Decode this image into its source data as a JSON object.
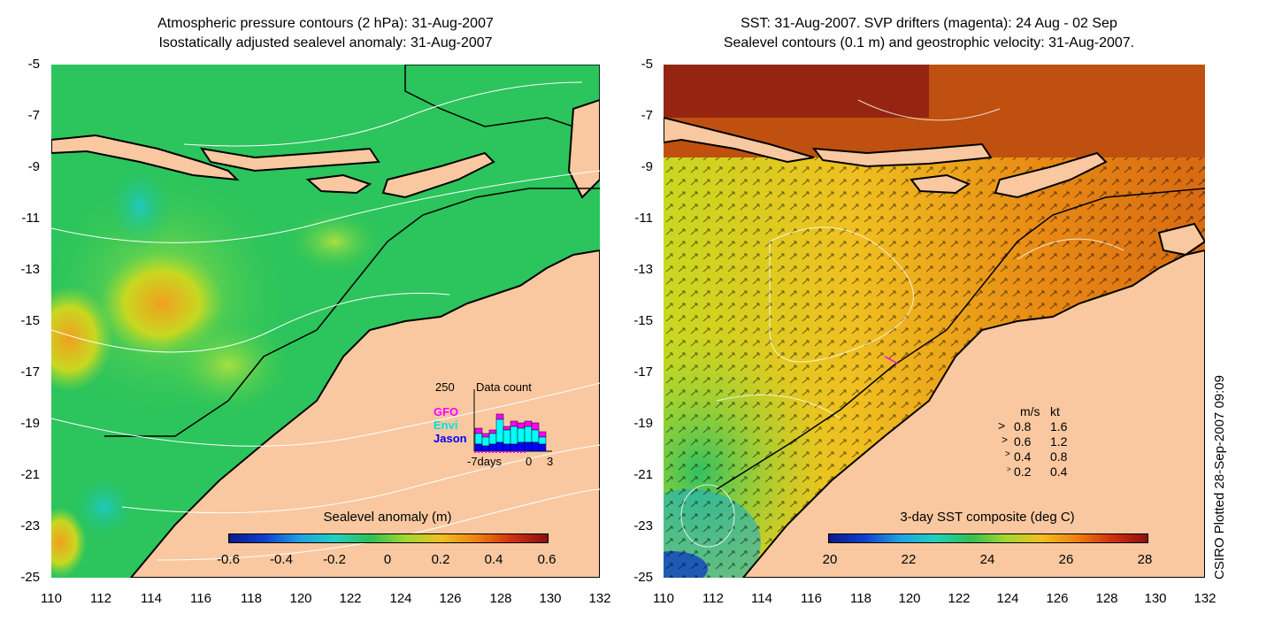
{
  "left_panel": {
    "title_line1": "Atmospheric pressure contours (2 hPa): 31-Aug-2007",
    "title_line2": "Isostatically adjusted sealevel anomaly: 31-Aug-2007",
    "colorbar_label": "Sealevel anomaly (m)",
    "colorbar_ticks": [
      "-0.6",
      "-0.4",
      "-0.2",
      "0",
      "0.2",
      "0.4",
      "0.6"
    ],
    "data_count": {
      "max_label": "250",
      "title": "Data count",
      "sources": [
        "GFO",
        "Envi",
        "Jason"
      ],
      "source_colors": [
        "#ff00ff",
        "#00ffff",
        "#0000ff"
      ],
      "x_labels": [
        "-7days",
        "0",
        "3"
      ]
    }
  },
  "right_panel": {
    "title_line1": "SST: 31-Aug-2007. SVP drifters (magenta): 24 Aug - 02 Sep",
    "title_line2": "Sealevel contours (0.1 m) and geostrophic velocity: 31-Aug-2007.",
    "colorbar_label": "3-day SST composite (deg C)",
    "colorbar_ticks": [
      "20",
      "22",
      "24",
      "26",
      "28"
    ],
    "velocity_legend": {
      "header_ms": "m/s",
      "header_kt": "kt",
      "rows": [
        {
          "ms": "0.8",
          "kt": "1.6"
        },
        {
          "ms": "0.6",
          "kt": "1.2"
        },
        {
          "ms": "0.4",
          "kt": "0.8"
        },
        {
          "ms": "0.2",
          "kt": "0.4"
        }
      ]
    }
  },
  "y_ticks": [
    "-5",
    "-7",
    "-9",
    "-11",
    "-13",
    "-15",
    "-17",
    "-19",
    "-21",
    "-23",
    "-25"
  ],
  "x_ticks": [
    "110",
    "112",
    "114",
    "116",
    "118",
    "120",
    "122",
    "124",
    "126",
    "128",
    "130",
    "132"
  ],
  "credit": "CSIRO Plotted 28-Sep-2007 09:09",
  "colors": {
    "land": "#f9c8a0",
    "ocean_green": "#22c45a",
    "sst_orange": "#e0780f"
  }
}
